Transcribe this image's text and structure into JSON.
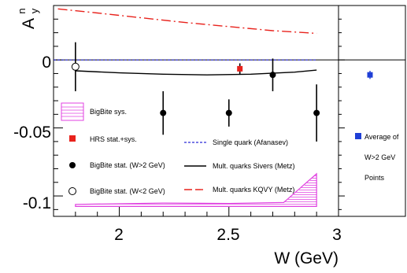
{
  "chart_data": {
    "type": "scatter",
    "xlabel": "W (GeV)",
    "ylabel_main": "A",
    "ylabel_sup": "n",
    "ylabel_sub": "y",
    "xlim": [
      1.7,
      3.0
    ],
    "ylim": [
      -0.115,
      0.04
    ],
    "x_ticks": [
      "2",
      "2.5",
      "3"
    ],
    "y_ticks": [
      "0",
      "-0.05",
      "-0.1"
    ],
    "colors": {
      "hrs": "#e8221c",
      "bigbite_sys": "#e040e0",
      "single_quark": "#2b2bd6",
      "sivers": "#000000",
      "kqvy": "#e8221c",
      "average": "#1f3fd6"
    },
    "series": [
      {
        "name": "BigBite stat. (W>2 GeV)",
        "marker": "filled-circle",
        "points": [
          {
            "x": 2.2,
            "y": -0.039,
            "err": 0.016
          },
          {
            "x": 2.5,
            "y": -0.039,
            "err": 0.01
          },
          {
            "x": 2.7,
            "y": -0.011,
            "err": 0.012
          },
          {
            "x": 2.9,
            "y": -0.039,
            "err": 0.021
          }
        ]
      },
      {
        "name": "BigBite stat. (W<2 GeV)",
        "marker": "open-circle",
        "points": [
          {
            "x": 1.8,
            "y": -0.005,
            "err": 0.018
          }
        ]
      },
      {
        "name": "HRS stat.+sys.",
        "marker": "filled-square",
        "points": [
          {
            "x": 2.55,
            "y": -0.0065,
            "err": 0.004
          }
        ]
      },
      {
        "name": "Single quark (Afanasev)",
        "line": "dashed",
        "points": [
          [
            1.7,
            0.0
          ],
          [
            2.9,
            0.0
          ]
        ]
      },
      {
        "name": "Mult. quarks Sivers (Metz)",
        "line": "solid",
        "points": [
          [
            1.8,
            -0.008
          ],
          [
            2.0,
            -0.0095
          ],
          [
            2.2,
            -0.0105
          ],
          [
            2.4,
            -0.011
          ],
          [
            2.6,
            -0.0105
          ],
          [
            2.8,
            -0.009
          ],
          [
            2.9,
            -0.0075
          ]
        ]
      },
      {
        "name": "Mult. quarks KQVY (Metz)",
        "line": "long-dash-dot",
        "points": [
          [
            1.72,
            0.0375
          ],
          [
            1.9,
            0.0345
          ],
          [
            2.1,
            0.031
          ],
          [
            2.3,
            0.0275
          ],
          [
            2.5,
            0.0245
          ],
          [
            2.7,
            0.0215
          ],
          [
            2.9,
            0.0195
          ]
        ]
      }
    ],
    "sys_band": {
      "name": "BigBite sys.",
      "lower": -0.1077,
      "upper_points": [
        [
          1.8,
          -0.1062
        ],
        [
          2.2,
          -0.1052
        ],
        [
          2.5,
          -0.1055
        ],
        [
          2.75,
          -0.1048
        ],
        [
          2.9,
          -0.0837
        ]
      ]
    },
    "legend": [
      {
        "label": "BigBite sys.",
        "symbol": "hatched-box"
      },
      {
        "label": "HRS stat.+sys.",
        "symbol": "red-square"
      },
      {
        "label": "BigBite stat. (W>2 GeV)",
        "symbol": "filled-circle"
      },
      {
        "label": "BigBite stat. (W<2 GeV)",
        "symbol": "open-circle"
      },
      {
        "label": "Single quark (Afanasev)",
        "symbol": "blue-dash"
      },
      {
        "label": "Mult. quarks Sivers (Metz)",
        "symbol": "black-line"
      },
      {
        "label": "Mult. quarks KQVY (Metz)",
        "symbol": "red-dashdot"
      }
    ],
    "side_panel": {
      "label_line1": "Average of",
      "label_line2": "W>2 GeV",
      "label_line3": "Points",
      "value": -0.011,
      "err": 0.003
    }
  }
}
